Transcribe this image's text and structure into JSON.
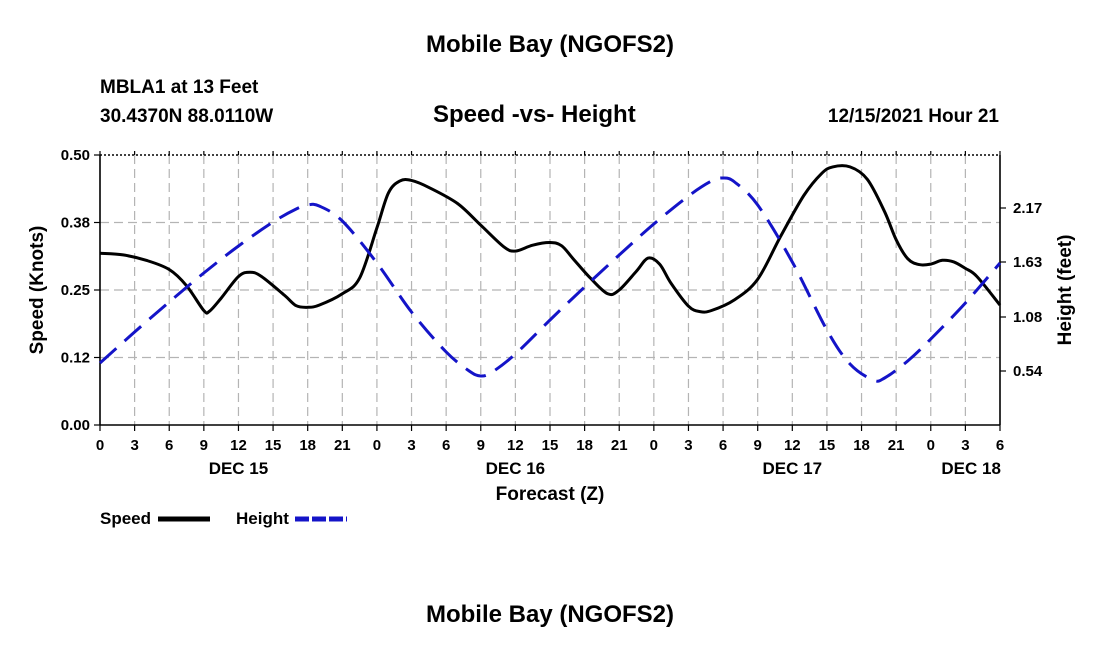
{
  "page": {
    "title": "Mobile Bay (NGOFS2)",
    "station": "MBLA1 at 13 Feet",
    "coordinates": "30.4370N  88.0110W",
    "timestamp": "12/15/2021 Hour 21",
    "bottom_title": "Mobile Bay (NGOFS2)"
  },
  "chart_data": {
    "type": "line",
    "title": "Speed -vs- Height",
    "xlabel": "Forecast (Z)",
    "ylabel_left": "Speed (Knots)",
    "ylabel_right": "Height (feet)",
    "x_unit": "hours since DEC 15 00Z",
    "xlim": [
      0,
      78
    ],
    "ylim_left": [
      0,
      0.5
    ],
    "left_ticks": [
      {
        "value": 0,
        "label": "0.00"
      },
      {
        "value": 0.125,
        "label": "0.12"
      },
      {
        "value": 0.25,
        "label": "0.25"
      },
      {
        "value": 0.375,
        "label": "0.38"
      },
      {
        "value": 0.5,
        "label": "0.50"
      }
    ],
    "ylim_right": [
      0,
      2.7
    ],
    "right_ticks": [
      {
        "value": 0.54,
        "label": "0.54"
      },
      {
        "value": 1.08,
        "label": "1.08"
      },
      {
        "value": 1.63,
        "label": "1.63"
      },
      {
        "value": 2.17,
        "label": "2.17"
      }
    ],
    "x_ticks": [
      {
        "value": 0,
        "label": "0"
      },
      {
        "value": 3,
        "label": "3"
      },
      {
        "value": 6,
        "label": "6"
      },
      {
        "value": 9,
        "label": "9"
      },
      {
        "value": 12,
        "label": "12"
      },
      {
        "value": 15,
        "label": "15"
      },
      {
        "value": 18,
        "label": "18"
      },
      {
        "value": 21,
        "label": "21"
      },
      {
        "value": 24,
        "label": "0"
      },
      {
        "value": 27,
        "label": "3"
      },
      {
        "value": 30,
        "label": "6"
      },
      {
        "value": 33,
        "label": "9"
      },
      {
        "value": 36,
        "label": "12"
      },
      {
        "value": 39,
        "label": "15"
      },
      {
        "value": 42,
        "label": "18"
      },
      {
        "value": 45,
        "label": "21"
      },
      {
        "value": 48,
        "label": "0"
      },
      {
        "value": 51,
        "label": "3"
      },
      {
        "value": 54,
        "label": "6"
      },
      {
        "value": 57,
        "label": "9"
      },
      {
        "value": 60,
        "label": "12"
      },
      {
        "value": 63,
        "label": "15"
      },
      {
        "value": 66,
        "label": "18"
      },
      {
        "value": 69,
        "label": "21"
      },
      {
        "value": 72,
        "label": "0"
      },
      {
        "value": 75,
        "label": "3"
      },
      {
        "value": 78,
        "label": "6"
      }
    ],
    "day_labels": [
      {
        "value": 12,
        "label": "DEC 15"
      },
      {
        "value": 36,
        "label": "DEC 16"
      },
      {
        "value": 60,
        "label": "DEC 17"
      },
      {
        "value": 75.5,
        "label": "DEC 18"
      }
    ],
    "grid": true,
    "series": [
      {
        "name": "Speed",
        "axis": "left",
        "color": "#000000",
        "dash": "solid",
        "points": [
          [
            0,
            0.318
          ],
          [
            2,
            0.315
          ],
          [
            4,
            0.305
          ],
          [
            6,
            0.288
          ],
          [
            7.5,
            0.258
          ],
          [
            9,
            0.212
          ],
          [
            9.5,
            0.211
          ],
          [
            10.5,
            0.235
          ],
          [
            12,
            0.275
          ],
          [
            13,
            0.283
          ],
          [
            14,
            0.275
          ],
          [
            16,
            0.24
          ],
          [
            17,
            0.221
          ],
          [
            18,
            0.218
          ],
          [
            19,
            0.222
          ],
          [
            21,
            0.243
          ],
          [
            22.5,
            0.272
          ],
          [
            24,
            0.365
          ],
          [
            25,
            0.43
          ],
          [
            26,
            0.452
          ],
          [
            27,
            0.453
          ],
          [
            28.5,
            0.44
          ],
          [
            31,
            0.41
          ],
          [
            33,
            0.37
          ],
          [
            35,
            0.33
          ],
          [
            36,
            0.322
          ],
          [
            37.5,
            0.333
          ],
          [
            39,
            0.338
          ],
          [
            40,
            0.332
          ],
          [
            41,
            0.308
          ],
          [
            42.5,
            0.272
          ],
          [
            44,
            0.243
          ],
          [
            45,
            0.25
          ],
          [
            46.5,
            0.285
          ],
          [
            47.5,
            0.309
          ],
          [
            48.5,
            0.298
          ],
          [
            49.5,
            0.262
          ],
          [
            51,
            0.22
          ],
          [
            52,
            0.21
          ],
          [
            53,
            0.212
          ],
          [
            55,
            0.232
          ],
          [
            57,
            0.27
          ],
          [
            59,
            0.35
          ],
          [
            61,
            0.425
          ],
          [
            62.5,
            0.465
          ],
          [
            63.5,
            0.478
          ],
          [
            65,
            0.478
          ],
          [
            66.5,
            0.455
          ],
          [
            68,
            0.395
          ],
          [
            69,
            0.343
          ],
          [
            70,
            0.308
          ],
          [
            71,
            0.297
          ],
          [
            72,
            0.298
          ],
          [
            73,
            0.305
          ],
          [
            74,
            0.302
          ],
          [
            75,
            0.29
          ],
          [
            76,
            0.275
          ],
          [
            78,
            0.222
          ]
        ]
      },
      {
        "name": "Height",
        "axis": "right",
        "color": "#1414c8",
        "dash": "dashed",
        "points": [
          [
            0,
            0.62
          ],
          [
            3,
            0.93
          ],
          [
            6,
            1.23
          ],
          [
            9,
            1.52
          ],
          [
            12,
            1.79
          ],
          [
            15,
            2.03
          ],
          [
            17,
            2.16
          ],
          [
            18,
            2.2
          ],
          [
            19,
            2.19
          ],
          [
            21,
            2.04
          ],
          [
            24,
            1.62
          ],
          [
            27,
            1.13
          ],
          [
            30,
            0.73
          ],
          [
            32,
            0.54
          ],
          [
            33,
            0.49
          ],
          [
            34,
            0.53
          ],
          [
            36,
            0.71
          ],
          [
            39,
            1.05
          ],
          [
            42,
            1.38
          ],
          [
            45,
            1.7
          ],
          [
            48,
            2.01
          ],
          [
            51,
            2.29
          ],
          [
            53,
            2.44
          ],
          [
            54,
            2.47
          ],
          [
            55,
            2.43
          ],
          [
            57,
            2.2
          ],
          [
            60,
            1.63
          ],
          [
            63,
            0.95
          ],
          [
            65,
            0.61
          ],
          [
            67,
            0.45
          ],
          [
            68,
            0.47
          ],
          [
            70,
            0.64
          ],
          [
            72,
            0.86
          ],
          [
            75,
            1.22
          ],
          [
            78,
            1.62
          ]
        ]
      }
    ]
  },
  "legend": {
    "items": [
      {
        "label": "Speed",
        "color": "#000000"
      },
      {
        "label": "Height",
        "color": "#1414c8"
      }
    ]
  }
}
